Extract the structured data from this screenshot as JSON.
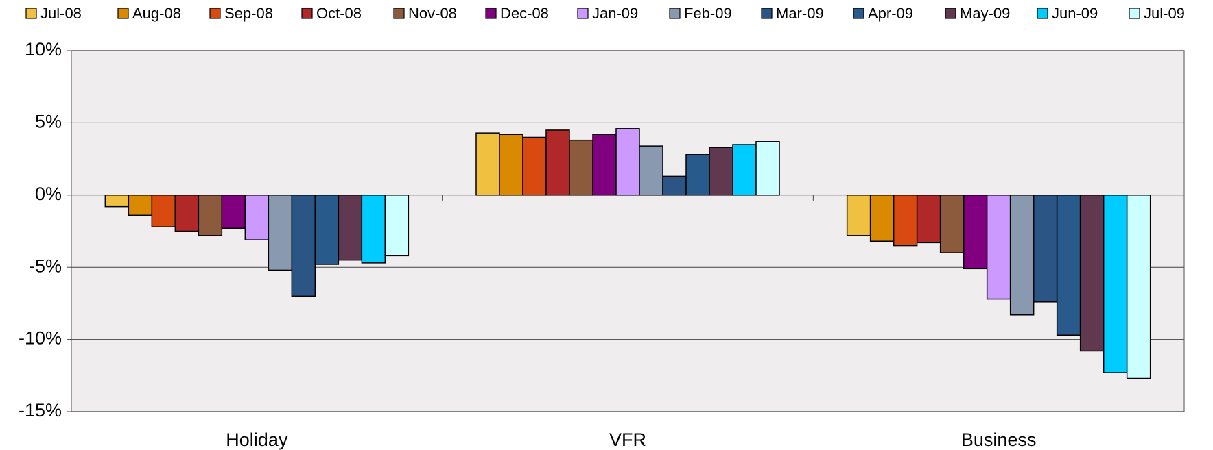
{
  "chart_data": {
    "type": "bar",
    "categories": [
      "Holiday",
      "VFR",
      "Business"
    ],
    "series": [
      {
        "name": "Jul-08",
        "color": "#f0c040",
        "values": [
          -0.8,
          4.3,
          -2.8
        ]
      },
      {
        "name": "Aug-08",
        "color": "#d98a00",
        "values": [
          -1.4,
          4.2,
          -3.2
        ]
      },
      {
        "name": "Sep-08",
        "color": "#d94a10",
        "values": [
          -2.2,
          4.0,
          -3.5
        ]
      },
      {
        "name": "Oct-08",
        "color": "#b02828",
        "values": [
          -2.5,
          4.5,
          -3.3
        ]
      },
      {
        "name": "Nov-08",
        "color": "#8c5a3c",
        "values": [
          -2.8,
          3.8,
          -4.0
        ]
      },
      {
        "name": "Dec-08",
        "color": "#800080",
        "values": [
          -2.3,
          4.2,
          -5.1
        ]
      },
      {
        "name": "Jan-09",
        "color": "#cc99ff",
        "values": [
          -3.1,
          4.6,
          -7.2
        ]
      },
      {
        "name": "Feb-09",
        "color": "#8899b0",
        "values": [
          -5.2,
          3.4,
          -8.3
        ]
      },
      {
        "name": "Mar-09",
        "color": "#2a5585",
        "values": [
          -7.0,
          1.3,
          -7.4
        ]
      },
      {
        "name": "Apr-09",
        "color": "#285a8c",
        "values": [
          -4.8,
          2.8,
          -9.7
        ]
      },
      {
        "name": "May-09",
        "color": "#603850",
        "values": [
          -4.5,
          3.3,
          -10.8
        ]
      },
      {
        "name": "Jun-09",
        "color": "#00ccff",
        "values": [
          -4.7,
          3.5,
          -12.3
        ]
      },
      {
        "name": "Jul-09",
        "color": "#ccffff",
        "values": [
          -4.2,
          3.7,
          -12.7
        ]
      }
    ],
    "ylim": [
      -15,
      10
    ],
    "yticks": [
      {
        "value": -15,
        "label": "-15%"
      },
      {
        "value": -10,
        "label": "-10%"
      },
      {
        "value": -5,
        "label": "-5%"
      },
      {
        "value": 0,
        "label": "0%"
      },
      {
        "value": 5,
        "label": "5%"
      },
      {
        "value": 10,
        "label": "10%"
      }
    ],
    "grid": true,
    "legend": "top"
  }
}
